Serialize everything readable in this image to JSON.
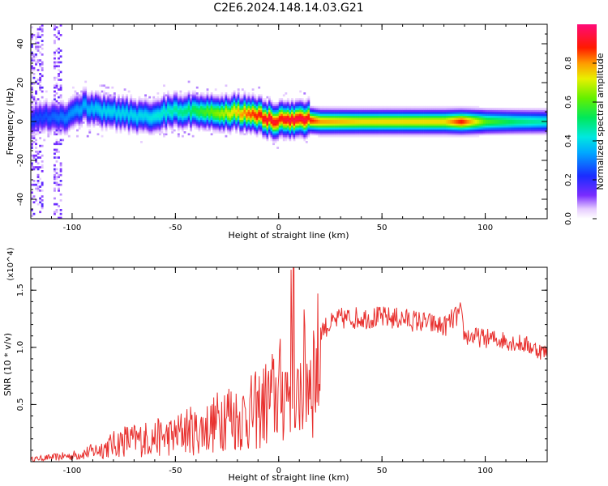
{
  "figure": {
    "title": "C2E6.2024.148.14.03.G21"
  },
  "chart_data": [
    {
      "type": "heatmap",
      "xlabel": "Height of straight line (km)",
      "ylabel": "Frequency (Hz)",
      "xlim": [
        -120,
        130
      ],
      "ylim": [
        -50,
        50
      ],
      "xticks": [
        -100,
        -50,
        0,
        50,
        100
      ],
      "yticks": [
        -40,
        -20,
        0,
        20,
        40
      ],
      "colorbar": {
        "label": "Normalized spectral amplitude",
        "range": [
          0,
          1
        ],
        "ticks": [
          0.0,
          0.2,
          0.4,
          0.6,
          0.8
        ],
        "colormap": "rainbow (white/violet → blue → cyan → green → yellow → red → magenta)"
      },
      "ridge": {
        "x": [
          -115,
          -105,
          -95,
          -85,
          -75,
          -65,
          -55,
          -45,
          -35,
          -25,
          -15,
          -5,
          0,
          5,
          12,
          20,
          40,
          60,
          80,
          88,
          100,
          115,
          130
        ],
        "frequency_hz": [
          2,
          2,
          8,
          5,
          4,
          2,
          5,
          6,
          5,
          5,
          4,
          1,
          1,
          1,
          1,
          0,
          0,
          0,
          0,
          0,
          0,
          0,
          0
        ],
        "amplitude": [
          0.25,
          0.3,
          0.35,
          0.4,
          0.4,
          0.4,
          0.45,
          0.5,
          0.6,
          0.7,
          0.85,
          0.95,
          0.9,
          0.95,
          0.95,
          0.8,
          0.75,
          0.75,
          0.75,
          0.9,
          0.6,
          0.5,
          0.45
        ]
      },
      "grid": false
    },
    {
      "type": "line",
      "xlabel": "Height of straight line (km)",
      "ylabel": "SNR (10 * v/v)",
      "y_multiplier": "(x10^4)",
      "xlim": [
        -120,
        130
      ],
      "ylim": [
        0,
        17000
      ],
      "xticks": [
        -100,
        -50,
        0,
        50,
        100
      ],
      "yticks": [
        5000,
        10000,
        15000
      ],
      "ytick_labels": [
        "0.5",
        "1.0",
        "1.5"
      ],
      "color": "#e8312f",
      "series": [
        {
          "x": [
            -120,
            -110,
            -100,
            -90,
            -80,
            -75,
            -70,
            -60,
            -50,
            -45,
            -40,
            -30,
            -27,
            -20,
            -10,
            -5,
            0,
            5,
            7,
            8,
            10,
            15,
            20,
            30,
            40,
            50,
            60,
            70,
            80,
            88,
            90,
            100,
            110,
            120,
            125,
            130
          ],
          "values": [
            300,
            500,
            700,
            1200,
            2000,
            2500,
            2500,
            2800,
            3000,
            3800,
            3500,
            4500,
            6000,
            5000,
            6000,
            7000,
            8000,
            9000,
            17000,
            3000,
            9500,
            10500,
            11500,
            12500,
            12600,
            12600,
            12500,
            12200,
            11800,
            13000,
            11000,
            10800,
            10600,
            10200,
            9800,
            9500
          ]
        }
      ],
      "grid": false
    }
  ]
}
